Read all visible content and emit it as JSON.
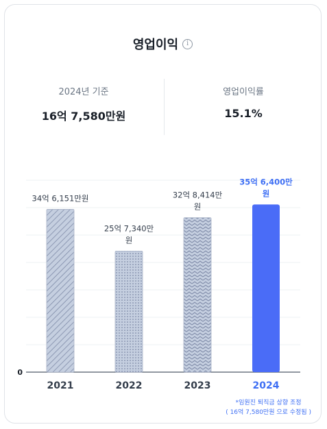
{
  "title": "영업이익",
  "info_icon": "info-icon",
  "summary": {
    "left_label": "2024년 기준",
    "left_value": "16억 7,580만원",
    "right_label": "영업이익률",
    "right_value": "15.1%"
  },
  "chart_data": {
    "type": "bar",
    "categories": [
      "2021",
      "2022",
      "2023",
      "2024"
    ],
    "values": [
      346151,
      257340,
      328414,
      356400
    ],
    "data_labels": [
      [
        "34억 6,151만원"
      ],
      [
        "25억 7,340만",
        "원"
      ],
      [
        "32억 8,414만",
        "원"
      ],
      [
        "35억 6,400만",
        "원"
      ]
    ],
    "y_tick_labels": [
      "0"
    ],
    "highlight_index": 3,
    "colors": {
      "default_fill": "#c5cfe0",
      "default_pattern": "#7f8ba8",
      "highlight": "#4a6cf7",
      "highlight_text": "#3e6ff4",
      "grid": "#eef0f3"
    }
  },
  "footnote": [
    "*임원진 퇴직금 상향 조정",
    "( 16억 7,580만원 으로 수정됨 )"
  ]
}
